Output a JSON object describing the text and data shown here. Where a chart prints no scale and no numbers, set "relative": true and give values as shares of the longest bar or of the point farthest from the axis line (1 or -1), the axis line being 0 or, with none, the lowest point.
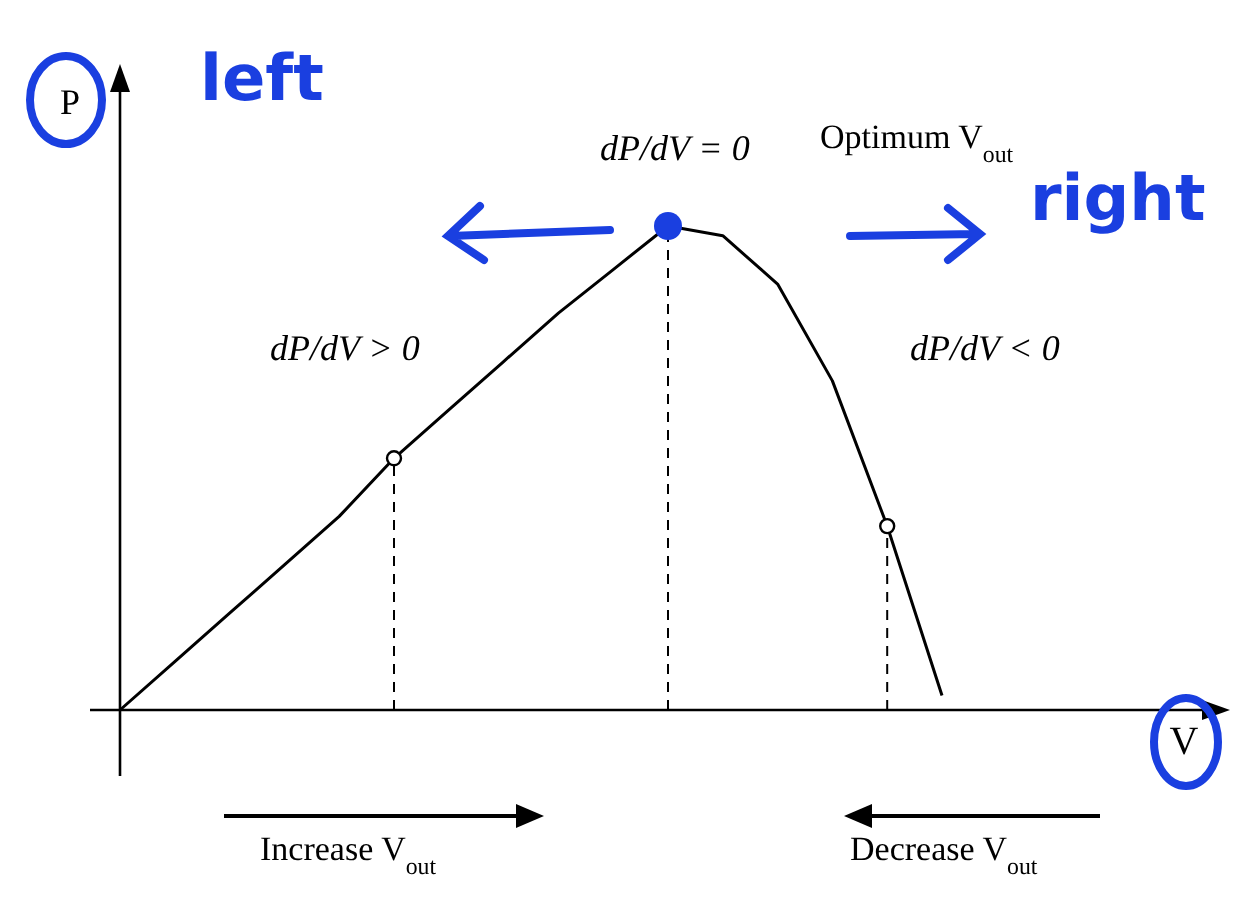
{
  "chart_data": {
    "type": "line",
    "relative": true,
    "ylabel": "P",
    "categories": [
      null,
      null,
      null,
      null,
      null,
      null,
      null,
      null,
      null,
      null,
      null,
      null,
      null,
      null,
      null,
      null
    ],
    "series": [
      {
        "color": "#000000",
        "values": [
          0,
          0.1,
          0.2,
          0.3,
          0.4,
          0.52,
          0.62,
          0.72,
          0.82,
          0.91,
          1,
          0.98,
          0.88,
          0.68,
          0.38,
          0.03
        ]
      }
    ],
    "annotations": [
      "dP/dV = 0",
      "Optimum V$_{out}$",
      "dP/dV > 0",
      "dP/dV < 0",
      "Increase V$_{out}$",
      "Decrease V$_{out}$",
      "left",
      "right",
      "V"
    ]
  }
}
